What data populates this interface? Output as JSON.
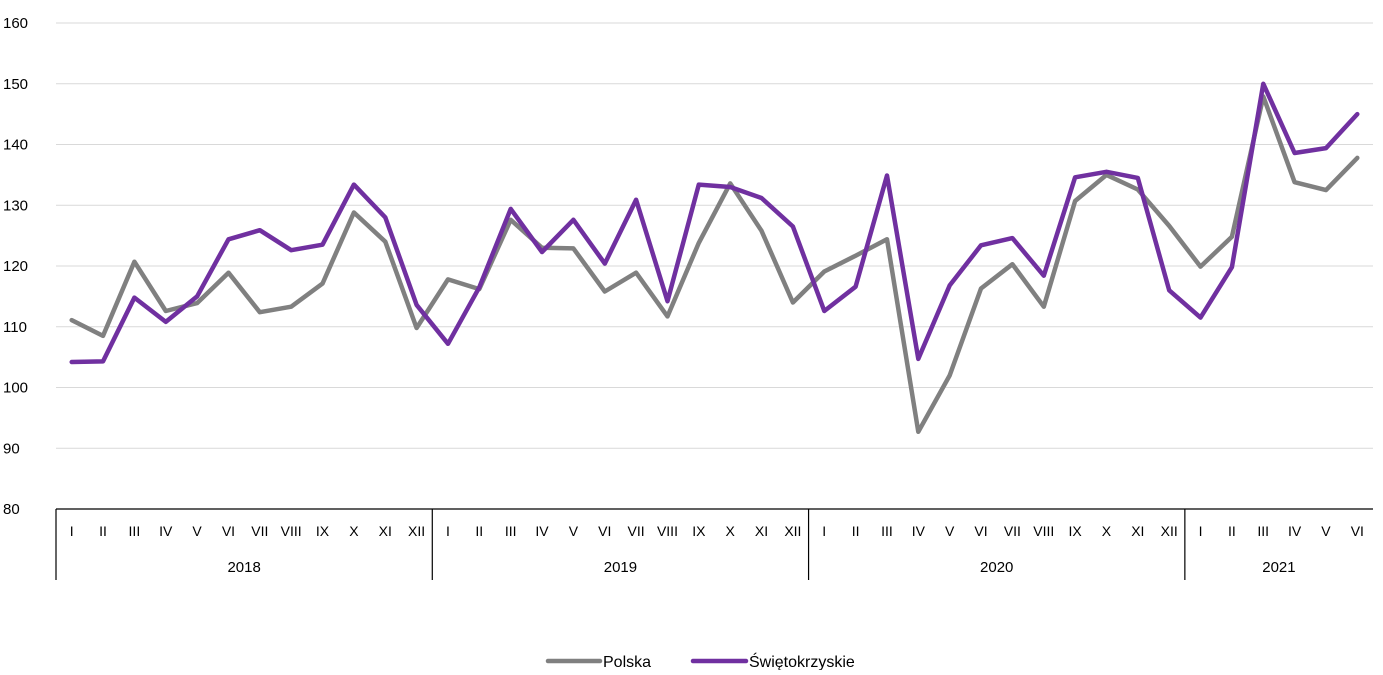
{
  "chart_data": {
    "type": "line",
    "title": "",
    "xlabel": "",
    "ylabel": "",
    "ylim": [
      80,
      160
    ],
    "y_ticks": [
      80,
      90,
      100,
      110,
      120,
      130,
      140,
      150,
      160
    ],
    "grid": "horizontal",
    "legend_position": "bottom-center",
    "months_labels": [
      "I",
      "II",
      "III",
      "IV",
      "V",
      "VI",
      "VII",
      "VIII",
      "IX",
      "X",
      "XI",
      "XII"
    ],
    "years": [
      {
        "label": "2018",
        "months": 12
      },
      {
        "label": "2019",
        "months": 12
      },
      {
        "label": "2020",
        "months": 12
      },
      {
        "label": "2021",
        "months": 6
      }
    ],
    "series": [
      {
        "name": "Polska",
        "color": "#808080",
        "values": [
          111.1,
          108.5,
          120.7,
          112.6,
          113.9,
          118.9,
          112.4,
          113.3,
          117.1,
          128.8,
          124.0,
          109.8,
          117.8,
          116.2,
          127.6,
          123.0,
          122.9,
          115.8,
          118.9,
          111.7,
          123.8,
          133.6,
          125.8,
          114.0,
          119.1,
          121.7,
          124.4,
          92.7,
          102.0,
          116.3,
          120.3,
          113.3,
          130.7,
          135.0,
          132.6,
          126.6,
          119.9,
          124.8,
          147.9,
          133.8,
          132.5,
          137.8
        ]
      },
      {
        "name": "Świętokrzyskie",
        "color": "#7030A0",
        "values": [
          104.2,
          104.3,
          114.8,
          110.8,
          115.0,
          124.4,
          125.9,
          122.6,
          123.5,
          133.4,
          128.0,
          113.6,
          107.2,
          116.5,
          129.4,
          122.3,
          127.6,
          120.4,
          130.9,
          114.2,
          133.4,
          133.0,
          131.2,
          126.5,
          112.6,
          116.6,
          134.9,
          104.7,
          116.8,
          123.4,
          124.6,
          118.4,
          134.6,
          135.5,
          134.5,
          116.0,
          111.5,
          119.8,
          150.0,
          138.6,
          139.4,
          145.0
        ]
      }
    ]
  }
}
